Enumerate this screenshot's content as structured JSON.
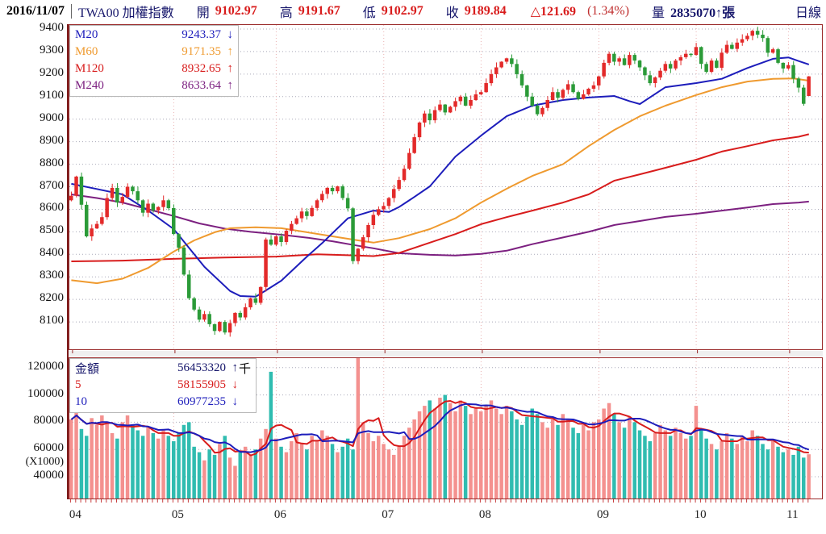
{
  "header": {
    "date": "2016/11/07",
    "symbol": "TWA00 加權指數",
    "open_label": "開",
    "open": "9102.97",
    "high_label": "高",
    "high": "9191.67",
    "low_label": "低",
    "low": "9102.97",
    "close_label": "收",
    "close": "9189.84",
    "change": "△121.69",
    "change_pct": "(1.34%)",
    "volume_label": "量",
    "volume": "2835070↑張",
    "period": "日線"
  },
  "price_legend": {
    "rows": [
      {
        "label": "M20",
        "value": "9243.37",
        "arrow": "↓",
        "color": "#1d1dbb"
      },
      {
        "label": "M60",
        "value": "9171.35",
        "arrow": "↑",
        "color": "#ef9a2f"
      },
      {
        "label": "M120",
        "value": "8932.65",
        "arrow": "↑",
        "color": "#d81c1c"
      },
      {
        "label": "M240",
        "value": "8633.64",
        "arrow": "↑",
        "color": "#7c2080"
      }
    ]
  },
  "volume_legend": {
    "rows": [
      {
        "label": "金額",
        "value": "56453320",
        "arrow": "↑",
        "suffix": "千",
        "color": "#16166b"
      },
      {
        "label": "5",
        "value": "58155905",
        "arrow": "↓",
        "suffix": "",
        "color": "#d81c1c"
      },
      {
        "label": "10",
        "value": "60977235",
        "arrow": "↓",
        "suffix": "",
        "color": "#1d1dbb"
      }
    ]
  },
  "chart_data": {
    "type": "candlestick+volume",
    "title": "TWA00 加權指數 日線",
    "price_axis": {
      "min": 8100,
      "max": 9400,
      "step": 100,
      "ticks": [
        9400,
        9300,
        9200,
        9100,
        9000,
        8900,
        8800,
        8700,
        8600,
        8500,
        8400,
        8300,
        8200,
        8100
      ]
    },
    "volume_axis": {
      "ticks": [
        120000,
        100000,
        80000,
        60000,
        40000
      ],
      "unit": "(X1000)"
    },
    "x_axis": {
      "labels": [
        "04",
        "05",
        "06",
        "07",
        "08",
        "09",
        "10",
        "11"
      ],
      "month_start_days": [
        0,
        20,
        40,
        61,
        80,
        103,
        122,
        140
      ]
    },
    "first_open": 8640,
    "closes": [
      8660,
      8745,
      8620,
      8480,
      8515,
      8535,
      8565,
      8650,
      8695,
      8630,
      8655,
      8700,
      8680,
      8640,
      8585,
      8625,
      8595,
      8610,
      8640,
      8605,
      8490,
      8430,
      8310,
      8205,
      8155,
      8110,
      8135,
      8090,
      8060,
      8100,
      8053,
      8095,
      8140,
      8120,
      8165,
      8205,
      8185,
      8255,
      8466,
      8443,
      8480,
      8455,
      8505,
      8535,
      8560,
      8590,
      8570,
      8606,
      8640,
      8668,
      8695,
      8680,
      8702,
      8650,
      8604,
      8370,
      8425,
      8476,
      8530,
      8575,
      8600,
      8615,
      8650,
      8690,
      8730,
      8780,
      8850,
      8920,
      8985,
      9025,
      8995,
      9040,
      9065,
      9030,
      9055,
      9080,
      9100,
      9060,
      9085,
      9110,
      9120,
      9160,
      9200,
      9230,
      9255,
      9270,
      9245,
      9200,
      9150,
      9100,
      9060,
      9022,
      9050,
      9085,
      9120,
      9095,
      9130,
      9155,
      9120,
      9090,
      9110,
      9135,
      9150,
      9190,
      9250,
      9290,
      9255,
      9270,
      9240,
      9285,
      9260,
      9230,
      9195,
      9160,
      9185,
      9215,
      9245,
      9225,
      9260,
      9275,
      9290,
      9285,
      9320,
      9245,
      9210,
      9260,
      9228,
      9295,
      9330,
      9312,
      9340,
      9355,
      9370,
      9392,
      9375,
      9360,
      9295,
      9310,
      9250,
      9225,
      9240,
      9180,
      9140,
      9068,
      9190
    ],
    "last_day": {
      "open": 9102.97,
      "high": 9191.67,
      "low": 9102.97,
      "close": 9189.84
    },
    "volumes": [
      82000,
      88000,
      75000,
      70000,
      83000,
      78000,
      85000,
      80000,
      72000,
      68000,
      80000,
      85000,
      78000,
      74000,
      70000,
      76000,
      72000,
      68000,
      74000,
      70000,
      66000,
      72000,
      78000,
      80000,
      62000,
      58000,
      52000,
      60000,
      56000,
      64000,
      70000,
      54000,
      48000,
      58000,
      62000,
      56000,
      60000,
      68000,
      75000,
      117000,
      68000,
      62000,
      58000,
      66000,
      72000,
      64000,
      60000,
      70000,
      66000,
      74000,
      70000,
      64000,
      58000,
      62000,
      68000,
      60000,
      127000,
      80000,
      72000,
      66000,
      70000,
      64000,
      60000,
      56000,
      62000,
      70000,
      76000,
      82000,
      88000,
      92000,
      96000,
      90000,
      98000,
      100000,
      94000,
      88000,
      96000,
      92000,
      86000,
      90000,
      88000,
      92000,
      96000,
      90000,
      86000,
      92000,
      88000,
      82000,
      78000,
      84000,
      90000,
      86000,
      80000,
      76000,
      82000,
      78000,
      86000,
      82000,
      76000,
      72000,
      78000,
      74000,
      80000,
      82000,
      90000,
      94000,
      86000,
      80000,
      76000,
      84000,
      80000,
      74000,
      70000,
      66000,
      72000,
      78000,
      74000,
      70000,
      76000,
      72000,
      68000,
      70000,
      92000,
      74000,
      68000,
      64000,
      60000,
      66000,
      72000,
      68000,
      64000,
      70000,
      66000,
      74000,
      70000,
      64000,
      60000,
      66000,
      62000,
      58000,
      60000,
      56000,
      62000,
      54000,
      56453
    ],
    "moving_averages": {
      "m20": [
        [
          0,
          8713
        ],
        [
          5,
          8690
        ],
        [
          10,
          8666
        ],
        [
          15,
          8594
        ],
        [
          20,
          8512
        ],
        [
          26,
          8344
        ],
        [
          31,
          8237
        ],
        [
          33,
          8215
        ],
        [
          36,
          8212
        ],
        [
          38,
          8240
        ],
        [
          41,
          8283
        ],
        [
          46,
          8390
        ],
        [
          49,
          8450
        ],
        [
          54,
          8560
        ],
        [
          59,
          8594
        ],
        [
          62,
          8588
        ],
        [
          64,
          8610
        ],
        [
          67,
          8655
        ],
        [
          70,
          8702
        ],
        [
          75,
          8834
        ],
        [
          80,
          8927
        ],
        [
          85,
          9013
        ],
        [
          90,
          9060
        ],
        [
          96,
          9085
        ],
        [
          101,
          9096
        ],
        [
          106,
          9103
        ],
        [
          109,
          9080
        ],
        [
          111,
          9067
        ],
        [
          116,
          9142
        ],
        [
          122,
          9160
        ],
        [
          127,
          9179
        ],
        [
          132,
          9227
        ],
        [
          137,
          9268
        ],
        [
          140,
          9274
        ],
        [
          142,
          9258
        ],
        [
          144,
          9243
        ]
      ],
      "m60": [
        [
          0,
          8285
        ],
        [
          5,
          8272
        ],
        [
          10,
          8292
        ],
        [
          15,
          8340
        ],
        [
          20,
          8412
        ],
        [
          24,
          8462
        ],
        [
          28,
          8498
        ],
        [
          31,
          8516
        ],
        [
          36,
          8520
        ],
        [
          41,
          8516
        ],
        [
          46,
          8498
        ],
        [
          51,
          8480
        ],
        [
          56,
          8462
        ],
        [
          59,
          8452
        ],
        [
          64,
          8472
        ],
        [
          70,
          8512
        ],
        [
          75,
          8560
        ],
        [
          80,
          8630
        ],
        [
          85,
          8691
        ],
        [
          90,
          8748
        ],
        [
          96,
          8800
        ],
        [
          101,
          8880
        ],
        [
          106,
          8952
        ],
        [
          111,
          9013
        ],
        [
          116,
          9060
        ],
        [
          122,
          9107
        ],
        [
          127,
          9142
        ],
        [
          132,
          9167
        ],
        [
          137,
          9179
        ],
        [
          141,
          9181
        ],
        [
          144,
          9171
        ]
      ],
      "m120": [
        [
          0,
          8369
        ],
        [
          10,
          8372
        ],
        [
          20,
          8380
        ],
        [
          30,
          8386
        ],
        [
          40,
          8390
        ],
        [
          48,
          8400
        ],
        [
          54,
          8396
        ],
        [
          59,
          8392
        ],
        [
          64,
          8406
        ],
        [
          70,
          8452
        ],
        [
          75,
          8490
        ],
        [
          80,
          8534
        ],
        [
          85,
          8565
        ],
        [
          90,
          8594
        ],
        [
          96,
          8630
        ],
        [
          101,
          8666
        ],
        [
          106,
          8727
        ],
        [
          111,
          8755
        ],
        [
          116,
          8784
        ],
        [
          122,
          8820
        ],
        [
          127,
          8856
        ],
        [
          132,
          8880
        ],
        [
          137,
          8906
        ],
        [
          142,
          8922
        ],
        [
          144,
          8933
        ]
      ],
      "m240": [
        [
          0,
          8666
        ],
        [
          5,
          8650
        ],
        [
          10,
          8630
        ],
        [
          15,
          8600
        ],
        [
          20,
          8570
        ],
        [
          25,
          8537
        ],
        [
          30,
          8514
        ],
        [
          35,
          8500
        ],
        [
          41,
          8487
        ],
        [
          46,
          8474
        ],
        [
          51,
          8458
        ],
        [
          56,
          8438
        ],
        [
          59,
          8427
        ],
        [
          64,
          8405
        ],
        [
          70,
          8398
        ],
        [
          75,
          8395
        ],
        [
          80,
          8402
        ],
        [
          85,
          8416
        ],
        [
          90,
          8445
        ],
        [
          96,
          8475
        ],
        [
          101,
          8500
        ],
        [
          106,
          8530
        ],
        [
          111,
          8548
        ],
        [
          116,
          8566
        ],
        [
          122,
          8580
        ],
        [
          127,
          8594
        ],
        [
          132,
          8608
        ],
        [
          137,
          8623
        ],
        [
          142,
          8630
        ],
        [
          144,
          8634
        ]
      ]
    },
    "volume_ma_periods": [
      5,
      10
    ],
    "colors": {
      "up": "#e32a2a",
      "down": "#2b9b38",
      "vol_up": "#f4918f",
      "vol_down": "#30bcb0",
      "m20": "#1d1dbb",
      "m60": "#ef9a2f",
      "m120": "#d81c1c",
      "m240": "#7c2080",
      "vol_ma5": "#d81c1c",
      "vol_ma10": "#1d1dbb",
      "frame": "#9a2a2a",
      "grid": "#a9a9b9",
      "month_grid": "#eab2b2",
      "tick": "#c84040"
    }
  }
}
